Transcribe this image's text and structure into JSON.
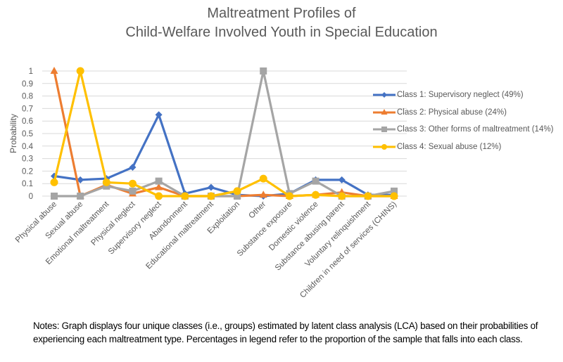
{
  "chart_data": {
    "type": "line",
    "title": [
      "Maltreatment Profiles of",
      "Child-Welfare Involved Youth in Special Education"
    ],
    "xlabel": "",
    "ylabel": "Probability",
    "ylim": [
      0,
      1
    ],
    "yticks": [
      "0",
      "0.1",
      "0.2",
      "0.3",
      "0.4",
      "0.5",
      "0.6",
      "0.7",
      "0.8",
      "0.9",
      "1"
    ],
    "grid": true,
    "legend_position": "right",
    "categories": [
      "Physical abuse",
      "Sexual abuse",
      "Emotional maltreatment",
      "Physical neglect",
      "Supervisory neglect",
      "Abandonment",
      "Educational maltreatment",
      "Exploitation",
      "Other",
      "Substance exposure",
      "Domestic violence",
      "Substance abusing parent",
      "Voluntary relinquishment",
      "Children in need of services (CHINS)"
    ],
    "series": [
      {
        "name": "Class 1: Supervisory neglect (49%)",
        "color": "#4472c4",
        "marker": "diamond",
        "values": [
          0.16,
          0.13,
          0.14,
          0.23,
          0.65,
          0.02,
          0.07,
          0.01,
          0.0,
          0.02,
          0.13,
          0.13,
          0.01,
          0.01
        ]
      },
      {
        "name": "Class 2: Physical abuse (24%)",
        "color": "#ed7d31",
        "marker": "triangle",
        "values": [
          1.0,
          0.0,
          0.09,
          0.02,
          0.07,
          0.0,
          0.0,
          0.0,
          0.01,
          0.0,
          0.01,
          0.03,
          0.0,
          0.0
        ]
      },
      {
        "name": "Class 3: Other forms of maltreatment (14%)",
        "color": "#a5a5a5",
        "marker": "square",
        "values": [
          0.0,
          0.0,
          0.08,
          0.04,
          0.12,
          0.0,
          0.0,
          0.0,
          1.0,
          0.02,
          0.12,
          0.0,
          0.0,
          0.04
        ]
      },
      {
        "name": "Class 4: Sexual abuse (12%)",
        "color": "#ffc000",
        "marker": "circle",
        "values": [
          0.11,
          1.0,
          0.11,
          0.1,
          0.0,
          0.0,
          0.0,
          0.04,
          0.14,
          0.0,
          0.01,
          0.0,
          0.0,
          0.0
        ]
      }
    ],
    "notes": "Notes: Graph displays four unique classes (i.e., groups) estimated by latent class analysis (LCA) based on their probabilities of experiencing each maltreatment type. Percentages in legend refer to the proportion of the sample that falls into each class."
  }
}
